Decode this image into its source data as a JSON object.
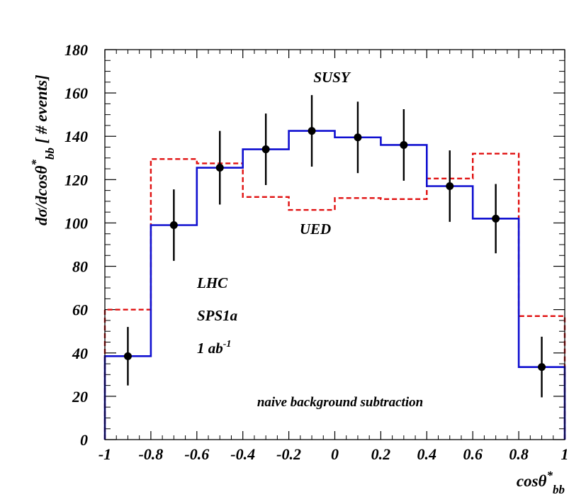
{
  "chart_data": {
    "type": "line",
    "xlabel": "cosθ",
    "xlabel_sup": "*",
    "xlabel_sub": "bb",
    "ylabel": "dσ/dcosθ",
    "ylabel_sup": "*",
    "ylabel_sub": "bb",
    "ylabel_suffix": " [ # events]",
    "xlim": [
      -1,
      1
    ],
    "ylim": [
      0,
      180
    ],
    "x_ticks": [
      -1,
      -0.8,
      -0.6,
      -0.4,
      -0.2,
      0,
      0.2,
      0.4,
      0.6,
      0.8,
      1
    ],
    "y_ticks": [
      0,
      20,
      40,
      60,
      80,
      100,
      120,
      140,
      160,
      180
    ],
    "bin_edges": [
      -1,
      -0.8,
      -0.6,
      -0.4,
      -0.2,
      0,
      0.2,
      0.4,
      0.6,
      0.8,
      1
    ],
    "series": [
      {
        "name": "SUSY",
        "style": "solid",
        "color": "#1010d0",
        "values": [
          38.5,
          99,
          125.5,
          134,
          142.5,
          139.5,
          136,
          117,
          102,
          33.5
        ]
      },
      {
        "name": "UED",
        "style": "dashed",
        "color": "#e01010",
        "values": [
          60,
          129.5,
          127.5,
          112,
          106,
          111.5,
          111,
          120.5,
          132,
          57
        ]
      },
      {
        "name": "data",
        "style": "points",
        "color": "#000000",
        "x": [
          -0.9,
          -0.7,
          -0.5,
          -0.3,
          -0.1,
          0.1,
          0.3,
          0.5,
          0.7,
          0.9
        ],
        "values": [
          38.5,
          99,
          125.5,
          134,
          142.5,
          139.5,
          136,
          117,
          102,
          33.5
        ],
        "err": [
          13.5,
          16.5,
          17,
          16.5,
          16.5,
          16.5,
          16.5,
          16.5,
          16,
          14
        ]
      }
    ],
    "annotations": {
      "susy": "SUSY",
      "ued": "UED",
      "lhc": "LHC",
      "sps": "SPS1a",
      "lumi": "1 ab",
      "lumi_sup": "-1",
      "note": "naive background subtraction"
    },
    "grid": false,
    "legend": "none"
  }
}
